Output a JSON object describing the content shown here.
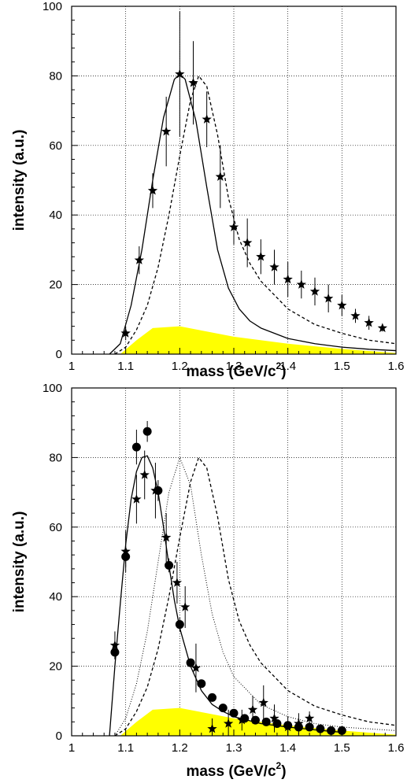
{
  "chart_data": [
    {
      "type": "line",
      "title": "",
      "xlabel": "mass (GeV/c",
      "xlabel_sup": "2",
      "xlabel_close": ")",
      "ylabel": "intensity (a.u.)",
      "xlim": [
        1.0,
        1.6
      ],
      "ylim": [
        0,
        100
      ],
      "xticks": [
        "1",
        "1.1",
        "1.2",
        "1.3",
        "1.4",
        "1.5",
        "1.6"
      ],
      "yticks": [
        "0",
        "20",
        "40",
        "60",
        "80",
        "100"
      ],
      "grid": true,
      "legend": "none",
      "colors": {
        "band": "#ffff00",
        "marker": "#000000"
      },
      "series": [
        {
          "kind": "band",
          "x": [
            1.09,
            1.12,
            1.15,
            1.2,
            1.25,
            1.3,
            1.4,
            1.5,
            1.6
          ],
          "y": [
            0,
            4,
            7.5,
            8,
            6.5,
            5,
            3,
            1.5,
            0.3
          ]
        },
        {
          "kind": "line",
          "style": "solid",
          "x": [
            1.07,
            1.09,
            1.11,
            1.13,
            1.15,
            1.17,
            1.19,
            1.2,
            1.21,
            1.23,
            1.25,
            1.27,
            1.29,
            1.31,
            1.33,
            1.35,
            1.4,
            1.45,
            1.5,
            1.55,
            1.6
          ],
          "y": [
            0,
            3,
            14,
            30,
            50,
            68,
            79,
            80.5,
            79,
            67,
            48,
            30,
            19,
            13,
            9.5,
            7.5,
            4.5,
            3,
            2,
            1.4,
            1
          ]
        },
        {
          "kind": "line",
          "style": "dashed",
          "x": [
            1.08,
            1.1,
            1.12,
            1.14,
            1.16,
            1.18,
            1.2,
            1.22,
            1.235,
            1.25,
            1.27,
            1.29,
            1.31,
            1.33,
            1.35,
            1.4,
            1.45,
            1.5,
            1.55,
            1.6
          ],
          "y": [
            0,
            2,
            7,
            14,
            25,
            40,
            57,
            73,
            80,
            77,
            63,
            45,
            33,
            26,
            21,
            13,
            8.5,
            6,
            4,
            3
          ]
        },
        {
          "kind": "points",
          "marker": "star",
          "x": [
            1.1,
            1.125,
            1.15,
            1.175,
            1.2,
            1.225,
            1.25,
            1.275,
            1.3,
            1.325,
            1.35,
            1.375,
            1.4,
            1.425,
            1.45,
            1.475,
            1.5,
            1.525,
            1.55,
            1.575
          ],
          "y": [
            6,
            27,
            47,
            64,
            80.5,
            78,
            67.5,
            51,
            36.5,
            32,
            28,
            25,
            21.5,
            20,
            18,
            16,
            14,
            11,
            9,
            7.5
          ],
          "yerr": [
            2,
            4,
            5,
            10,
            18,
            12,
            8,
            9,
            5,
            7,
            5,
            5,
            5,
            4,
            4,
            4,
            3,
            2,
            2,
            1
          ]
        }
      ]
    },
    {
      "type": "line",
      "title": "",
      "xlabel": "mass (GeV/c",
      "xlabel_sup": "2",
      "xlabel_close": ")",
      "ylabel": "intensity (a.u.)",
      "xlim": [
        1.0,
        1.6
      ],
      "ylim": [
        0,
        100
      ],
      "xticks": [
        "1",
        "1.1",
        "1.2",
        "1.3",
        "1.4",
        "1.5",
        "1.6"
      ],
      "yticks": [
        "0",
        "20",
        "40",
        "60",
        "80",
        "100"
      ],
      "grid": true,
      "legend": "none",
      "colors": {
        "band": "#ffff00",
        "marker": "#000000"
      },
      "series": [
        {
          "kind": "band",
          "x": [
            1.09,
            1.12,
            1.15,
            1.2,
            1.25,
            1.3,
            1.4,
            1.5,
            1.6
          ],
          "y": [
            0,
            4,
            7.5,
            8,
            6.5,
            5,
            3,
            1.5,
            0.3
          ]
        },
        {
          "kind": "line",
          "style": "dashed",
          "x": [
            1.08,
            1.1,
            1.12,
            1.14,
            1.16,
            1.18,
            1.2,
            1.22,
            1.235,
            1.25,
            1.27,
            1.29,
            1.31,
            1.33,
            1.35,
            1.4,
            1.45,
            1.5,
            1.55,
            1.6
          ],
          "y": [
            0,
            2,
            7,
            14,
            25,
            40,
            57,
            73,
            80,
            77,
            63,
            45,
            33,
            26,
            21,
            13,
            8.5,
            6,
            4,
            3
          ]
        },
        {
          "kind": "line",
          "style": "dotted",
          "x": [
            1.08,
            1.1,
            1.12,
            1.14,
            1.16,
            1.18,
            1.2,
            1.22,
            1.24,
            1.26,
            1.28,
            1.3,
            1.35,
            1.4,
            1.45,
            1.5,
            1.6
          ],
          "y": [
            0,
            5,
            15,
            30,
            50,
            70,
            80,
            72,
            52,
            35,
            24,
            17,
            9,
            5.5,
            3.5,
            2.5,
            1.5
          ]
        },
        {
          "kind": "line",
          "style": "solid",
          "x": [
            1.07,
            1.08,
            1.09,
            1.1,
            1.11,
            1.12,
            1.13,
            1.14,
            1.15,
            1.16,
            1.17,
            1.18,
            1.19,
            1.2,
            1.22,
            1.24,
            1.26,
            1.28,
            1.3,
            1.35,
            1.4,
            1.45,
            1.5
          ],
          "y": [
            0,
            20,
            38,
            55,
            68,
            76,
            80,
            80.5,
            77,
            70,
            60,
            49,
            39,
            31,
            20,
            13,
            9,
            7,
            5.5,
            3.5,
            2.5,
            1.7,
            1
          ]
        },
        {
          "kind": "points",
          "marker": "star",
          "x": [
            1.08,
            1.1,
            1.12,
            1.135,
            1.155,
            1.175,
            1.195,
            1.21,
            1.23,
            1.26,
            1.29,
            1.315,
            1.335,
            1.355,
            1.375,
            1.4,
            1.42,
            1.44
          ],
          "y": [
            26,
            53,
            68,
            75,
            70.5,
            57,
            44,
            37,
            19.5,
            2,
            3.5,
            4.5,
            7.5,
            9.5,
            5,
            2.5,
            3.5,
            5
          ],
          "yerr": [
            4,
            6,
            7,
            7,
            8,
            7,
            6,
            6,
            7,
            3,
            4,
            3,
            4,
            5,
            4,
            3,
            3,
            2
          ]
        },
        {
          "kind": "points",
          "marker": "circle",
          "x": [
            1.08,
            1.1,
            1.12,
            1.14,
            1.16,
            1.18,
            1.2,
            1.22,
            1.24,
            1.26,
            1.28,
            1.3,
            1.32,
            1.34,
            1.36,
            1.38,
            1.4,
            1.42,
            1.44,
            1.46,
            1.48,
            1.5
          ],
          "y": [
            24,
            51.5,
            83,
            87.5,
            70.5,
            49,
            32,
            21,
            15,
            11,
            8,
            6.5,
            5,
            4.5,
            4,
            3.5,
            3,
            2.5,
            2.5,
            2,
            1.5,
            1.5
          ],
          "yerr": [
            2,
            3,
            5,
            3,
            3,
            2,
            2,
            1,
            1,
            0,
            0,
            0,
            0,
            0,
            0,
            0,
            0,
            0,
            0,
            0,
            0,
            0
          ]
        }
      ]
    }
  ]
}
